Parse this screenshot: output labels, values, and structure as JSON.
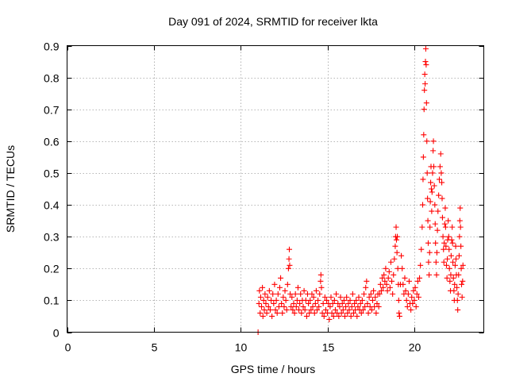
{
  "chart_data": {
    "type": "scatter",
    "title": "Day 091 of 2024, SRMTID for receiver lkta",
    "xlabel": "GPS time / hours",
    "ylabel": "SRMTID / TECUs",
    "xlim": [
      0,
      24
    ],
    "ylim": [
      0,
      0.9
    ],
    "xticks": [
      0,
      5,
      10,
      15,
      20
    ],
    "yticks": [
      0,
      0.1,
      0.2,
      0.3,
      0.4,
      0.5,
      0.6,
      0.7,
      0.8,
      0.9
    ],
    "xtick_labels": [
      "0",
      "5",
      "10",
      "15",
      "20"
    ],
    "ytick_labels": [
      "0",
      "0.1",
      "0.2",
      "0.3",
      "0.4",
      "0.5",
      "0.6",
      "0.7",
      "0.8",
      "0.9"
    ],
    "grid": true,
    "marker": "plus",
    "color": "#ff0000",
    "series": [
      {
        "name": "SRMTID",
        "points": [
          [
            11.0,
            0.0
          ],
          [
            11.05,
            0.09
          ],
          [
            11.08,
            0.13
          ],
          [
            11.12,
            0.06
          ],
          [
            11.15,
            0.11
          ],
          [
            11.2,
            0.08
          ],
          [
            11.25,
            0.14
          ],
          [
            11.28,
            0.05
          ],
          [
            11.32,
            0.1
          ],
          [
            11.36,
            0.07
          ],
          [
            11.4,
            0.12
          ],
          [
            11.45,
            0.09
          ],
          [
            11.5,
            0.06
          ],
          [
            11.55,
            0.11
          ],
          [
            11.6,
            0.08
          ],
          [
            11.65,
            0.13
          ],
          [
            11.7,
            0.07
          ],
          [
            11.75,
            0.1
          ],
          [
            11.8,
            0.05
          ],
          [
            11.85,
            0.12
          ],
          [
            11.9,
            0.09
          ],
          [
            11.95,
            0.15
          ],
          [
            12.0,
            0.07
          ],
          [
            12.05,
            0.1
          ],
          [
            12.1,
            0.06
          ],
          [
            12.15,
            0.12
          ],
          [
            12.2,
            0.08
          ],
          [
            12.25,
            0.14
          ],
          [
            12.3,
            0.17
          ],
          [
            12.35,
            0.09
          ],
          [
            12.4,
            0.06
          ],
          [
            12.45,
            0.11
          ],
          [
            12.5,
            0.08
          ],
          [
            12.55,
            0.13
          ],
          [
            12.6,
            0.1
          ],
          [
            12.65,
            0.07
          ],
          [
            12.7,
            0.15
          ],
          [
            12.75,
            0.2
          ],
          [
            12.78,
            0.23
          ],
          [
            12.8,
            0.26
          ],
          [
            12.82,
            0.21
          ],
          [
            12.85,
            0.12
          ],
          [
            12.9,
            0.08
          ],
          [
            12.95,
            0.11
          ],
          [
            13.0,
            0.07
          ],
          [
            13.05,
            0.09
          ],
          [
            13.1,
            0.06
          ],
          [
            13.15,
            0.12
          ],
          [
            13.2,
            0.08
          ],
          [
            13.25,
            0.1
          ],
          [
            13.3,
            0.14
          ],
          [
            13.35,
            0.07
          ],
          [
            13.4,
            0.09
          ],
          [
            13.45,
            0.12
          ],
          [
            13.5,
            0.06
          ],
          [
            13.55,
            0.1
          ],
          [
            13.6,
            0.08
          ],
          [
            13.65,
            0.13
          ],
          [
            13.7,
            0.07
          ],
          [
            13.75,
            0.1
          ],
          [
            13.8,
            0.05
          ],
          [
            13.85,
            0.12
          ],
          [
            13.9,
            0.09
          ],
          [
            13.95,
            0.06
          ],
          [
            14.0,
            0.1
          ],
          [
            14.05,
            0.07
          ],
          [
            14.1,
            0.12
          ],
          [
            14.15,
            0.08
          ],
          [
            14.2,
            0.11
          ],
          [
            14.25,
            0.06
          ],
          [
            14.3,
            0.09
          ],
          [
            14.35,
            0.13
          ],
          [
            14.4,
            0.07
          ],
          [
            14.45,
            0.1
          ],
          [
            14.5,
            0.08
          ],
          [
            14.55,
            0.12
          ],
          [
            14.6,
            0.16
          ],
          [
            14.62,
            0.18
          ],
          [
            14.65,
            0.14
          ],
          [
            14.7,
            0.06
          ],
          [
            14.75,
            0.09
          ],
          [
            14.8,
            0.05
          ],
          [
            14.85,
            0.11
          ],
          [
            14.9,
            0.07
          ],
          [
            14.95,
            0.1
          ],
          [
            15.0,
            0.06
          ],
          [
            15.05,
            0.09
          ],
          [
            15.1,
            0.04
          ],
          [
            15.15,
            0.08
          ],
          [
            15.2,
            0.11
          ],
          [
            15.25,
            0.06
          ],
          [
            15.3,
            0.09
          ],
          [
            15.35,
            0.05
          ],
          [
            15.4,
            0.1
          ],
          [
            15.45,
            0.07
          ],
          [
            15.5,
            0.12
          ],
          [
            15.55,
            0.06
          ],
          [
            15.6,
            0.09
          ],
          [
            15.65,
            0.05
          ],
          [
            15.7,
            0.08
          ],
          [
            15.75,
            0.11
          ],
          [
            15.8,
            0.06
          ],
          [
            15.85,
            0.09
          ],
          [
            15.9,
            0.07
          ],
          [
            15.95,
            0.1
          ],
          [
            16.0,
            0.05
          ],
          [
            16.05,
            0.08
          ],
          [
            16.1,
            0.11
          ],
          [
            16.15,
            0.06
          ],
          [
            16.2,
            0.09
          ],
          [
            16.25,
            0.07
          ],
          [
            16.3,
            0.1
          ],
          [
            16.35,
            0.05
          ],
          [
            16.4,
            0.08
          ],
          [
            16.45,
            0.12
          ],
          [
            16.5,
            0.06
          ],
          [
            16.55,
            0.09
          ],
          [
            16.6,
            0.07
          ],
          [
            16.65,
            0.1
          ],
          [
            16.7,
            0.05
          ],
          [
            16.75,
            0.08
          ],
          [
            16.8,
            0.11
          ],
          [
            16.85,
            0.07
          ],
          [
            16.9,
            0.09
          ],
          [
            16.95,
            0.06
          ],
          [
            17.0,
            0.1
          ],
          [
            17.05,
            0.07
          ],
          [
            17.1,
            0.12
          ],
          [
            17.15,
            0.08
          ],
          [
            17.2,
            0.14
          ],
          [
            17.25,
            0.16
          ],
          [
            17.3,
            0.09
          ],
          [
            17.35,
            0.06
          ],
          [
            17.4,
            0.11
          ],
          [
            17.45,
            0.08
          ],
          [
            17.5,
            0.12
          ],
          [
            17.55,
            0.07
          ],
          [
            17.6,
            0.1
          ],
          [
            17.65,
            0.13
          ],
          [
            17.7,
            0.08
          ],
          [
            17.75,
            0.11
          ],
          [
            17.8,
            0.06
          ],
          [
            17.85,
            0.09
          ],
          [
            17.9,
            0.12
          ],
          [
            17.95,
            0.08
          ],
          [
            18.0,
            0.12
          ],
          [
            18.05,
            0.15
          ],
          [
            18.1,
            0.13
          ],
          [
            18.15,
            0.17
          ],
          [
            18.2,
            0.14
          ],
          [
            18.25,
            0.18
          ],
          [
            18.3,
            0.16
          ],
          [
            18.35,
            0.2
          ],
          [
            18.4,
            0.15
          ],
          [
            18.45,
            0.13
          ],
          [
            18.5,
            0.17
          ],
          [
            18.55,
            0.19
          ],
          [
            18.6,
            0.14
          ],
          [
            18.65,
            0.22
          ],
          [
            18.7,
            0.16
          ],
          [
            18.75,
            0.12
          ],
          [
            18.8,
            0.18
          ],
          [
            18.85,
            0.23
          ],
          [
            18.9,
            0.27
          ],
          [
            18.92,
            0.3
          ],
          [
            18.95,
            0.33
          ],
          [
            18.97,
            0.29
          ],
          [
            19.0,
            0.25
          ],
          [
            19.02,
            0.3
          ],
          [
            19.05,
            0.2
          ],
          [
            19.08,
            0.15
          ],
          [
            19.1,
            0.1
          ],
          [
            19.12,
            0.06
          ],
          [
            19.15,
            0.05
          ],
          [
            19.2,
            0.15
          ],
          [
            19.25,
            0.24
          ],
          [
            19.3,
            0.2
          ],
          [
            19.35,
            0.15
          ],
          [
            19.4,
            0.12
          ],
          [
            19.45,
            0.17
          ],
          [
            19.5,
            0.13
          ],
          [
            19.55,
            0.1
          ],
          [
            19.6,
            0.08
          ],
          [
            19.65,
            0.12
          ],
          [
            19.7,
            0.16
          ],
          [
            19.75,
            0.09
          ],
          [
            19.8,
            0.07
          ],
          [
            19.85,
            0.11
          ],
          [
            19.9,
            0.09
          ],
          [
            19.95,
            0.13
          ],
          [
            20.0,
            0.1
          ],
          [
            20.05,
            0.14
          ],
          [
            20.1,
            0.08
          ],
          [
            20.15,
            0.12
          ],
          [
            20.2,
            0.16
          ],
          [
            20.25,
            0.11
          ],
          [
            20.3,
            0.17
          ],
          [
            20.35,
            0.21
          ],
          [
            20.4,
            0.26
          ],
          [
            20.45,
            0.33
          ],
          [
            20.48,
            0.4
          ],
          [
            20.5,
            0.48
          ],
          [
            20.52,
            0.55
          ],
          [
            20.54,
            0.62
          ],
          [
            20.56,
            0.7
          ],
          [
            20.58,
            0.76
          ],
          [
            20.6,
            0.81
          ],
          [
            20.62,
            0.78
          ],
          [
            20.64,
            0.85
          ],
          [
            20.66,
            0.89
          ],
          [
            20.68,
            0.84
          ],
          [
            20.7,
            0.72
          ],
          [
            20.72,
            0.6
          ],
          [
            20.74,
            0.5
          ],
          [
            20.76,
            0.42
          ],
          [
            20.78,
            0.35
          ],
          [
            20.8,
            0.28
          ],
          [
            20.82,
            0.22
          ],
          [
            20.85,
            0.18
          ],
          [
            20.88,
            0.25
          ],
          [
            20.9,
            0.33
          ],
          [
            20.92,
            0.41
          ],
          [
            20.94,
            0.47
          ],
          [
            20.96,
            0.52
          ],
          [
            20.98,
            0.45
          ],
          [
            21.0,
            0.38
          ],
          [
            21.02,
            0.44
          ],
          [
            21.05,
            0.5
          ],
          [
            21.08,
            0.57
          ],
          [
            21.1,
            0.6
          ],
          [
            21.12,
            0.52
          ],
          [
            21.15,
            0.46
          ],
          [
            21.18,
            0.4
          ],
          [
            21.2,
            0.34
          ],
          [
            21.22,
            0.28
          ],
          [
            21.25,
            0.22
          ],
          [
            21.28,
            0.18
          ],
          [
            21.3,
            0.25
          ],
          [
            21.33,
            0.32
          ],
          [
            21.36,
            0.38
          ],
          [
            21.4,
            0.43
          ],
          [
            21.44,
            0.48
          ],
          [
            21.48,
            0.52
          ],
          [
            21.52,
            0.56
          ],
          [
            21.55,
            0.5
          ],
          [
            21.58,
            0.47
          ],
          [
            21.6,
            0.42
          ],
          [
            21.62,
            0.36
          ],
          [
            21.65,
            0.3
          ],
          [
            21.68,
            0.26
          ],
          [
            21.7,
            0.22
          ],
          [
            21.72,
            0.28
          ],
          [
            21.75,
            0.34
          ],
          [
            21.78,
            0.39
          ],
          [
            21.8,
            0.33
          ],
          [
            21.82,
            0.27
          ],
          [
            21.85,
            0.21
          ],
          [
            21.88,
            0.17
          ],
          [
            21.9,
            0.23
          ],
          [
            21.92,
            0.29
          ],
          [
            21.95,
            0.35
          ],
          [
            21.98,
            0.3
          ],
          [
            22.0,
            0.26
          ],
          [
            22.02,
            0.2
          ],
          [
            22.05,
            0.16
          ],
          [
            22.08,
            0.13
          ],
          [
            22.1,
            0.18
          ],
          [
            22.12,
            0.24
          ],
          [
            22.15,
            0.29
          ],
          [
            22.18,
            0.33
          ],
          [
            22.2,
            0.28
          ],
          [
            22.22,
            0.22
          ],
          [
            22.25,
            0.17
          ],
          [
            22.28,
            0.13
          ],
          [
            22.3,
            0.1
          ],
          [
            22.32,
            0.15
          ],
          [
            22.35,
            0.21
          ],
          [
            22.38,
            0.27
          ],
          [
            22.4,
            0.23
          ],
          [
            22.42,
            0.18
          ],
          [
            22.45,
            0.14
          ],
          [
            22.48,
            0.1
          ],
          [
            22.5,
            0.07
          ],
          [
            22.52,
            0.12
          ],
          [
            22.55,
            0.18
          ],
          [
            22.58,
            0.24
          ],
          [
            22.6,
            0.3
          ],
          [
            22.62,
            0.35
          ],
          [
            22.64,
            0.39
          ],
          [
            22.66,
            0.33
          ],
          [
            22.68,
            0.27
          ],
          [
            22.7,
            0.2
          ],
          [
            22.72,
            0.15
          ],
          [
            22.75,
            0.11
          ],
          [
            22.78,
            0.16
          ],
          [
            22.8,
            0.21
          ]
        ]
      }
    ]
  }
}
